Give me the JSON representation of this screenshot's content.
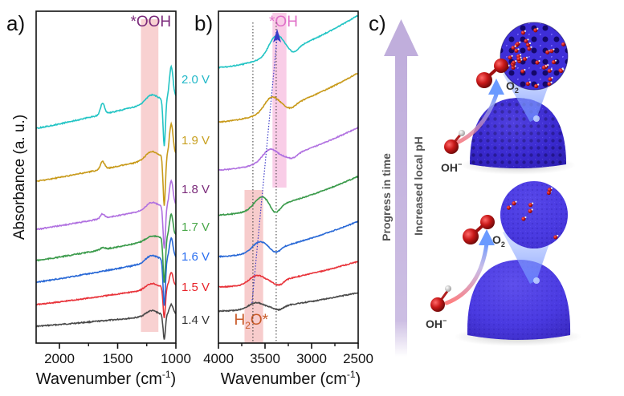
{
  "chart_data": [
    {
      "panel_label": "a)",
      "type": "line",
      "xlabel": "Wavenumber (cm",
      "xlabel_sup": "-1",
      "xlabel_tail": ")",
      "ylabel": "Absorbance (a. u.)",
      "xlim": [
        2200,
        1000
      ],
      "x_ticks": [
        2000,
        1500,
        1000
      ],
      "x_tick_labels": [
        "2000",
        "1500",
        "1000"
      ],
      "minor_ticks": [
        1750,
        1250
      ],
      "y_ticks": [],
      "grid": false,
      "highlight_band": {
        "label": "*OOH",
        "range": [
          1300,
          1150
        ],
        "color": "#f6c6c6",
        "label_color": "#7b2a7b"
      },
      "series": [
        {
          "name": "1.4 V",
          "color": "#4a4a4a",
          "offset": 0,
          "baseline_rise": 0.55,
          "hump": 0.25,
          "dip": 1.1,
          "peak_right": 0.45,
          "bump1630": 0.0
        },
        {
          "name": "1.5 V",
          "color": "#e8333a",
          "offset": 1,
          "baseline_rise": 0.85,
          "hump": 0.25,
          "dip": 1.4,
          "peak_right": 0.6,
          "bump1630": 0.0
        },
        {
          "name": "1.6 V",
          "color": "#2868d6",
          "offset": 2,
          "baseline_rise": 1.1,
          "hump": 0.3,
          "dip": 2.1,
          "peak_right": 0.9,
          "bump1630": 0.0
        },
        {
          "name": "1.7 V",
          "color": "#3a9a4a",
          "offset": 3,
          "baseline_rise": 1.1,
          "hump": 0.2,
          "dip": 2.0,
          "peak_right": 1.0,
          "bump1630": 0.1
        },
        {
          "name": "1.8 V",
          "color": "#b070e0",
          "offset": 4,
          "baseline_rise": 1.1,
          "hump": 0.3,
          "dip": 1.9,
          "peak_right": 1.1,
          "bump1630": 0.2
        },
        {
          "name": "1.9 V",
          "color": "#c89a1a",
          "offset": 5,
          "baseline_rise": 1.2,
          "hump": 0.35,
          "dip": 2.2,
          "peak_right": 1.4,
          "bump1630": 0.35
        },
        {
          "name": "2.0 V",
          "color": "#22c4c4",
          "offset": 6,
          "baseline_rise": 1.4,
          "hump": 0.35,
          "dip": 2.1,
          "peak_right": 1.4,
          "bump1630": 0.5
        }
      ],
      "label_colors": {
        "1.4 V": "#333333",
        "1.5 V": "#e8232a",
        "1.6 V": "#2a6ef0",
        "1.7 V": "#4aa84a",
        "1.8 V": "#7a2a7a",
        "1.9 V": "#c8a020",
        "2.0 V": "#22b8c8"
      }
    },
    {
      "panel_label": "b)",
      "type": "line",
      "xlabel": "Wavenumber (cm",
      "xlabel_sup": "-1",
      "xlabel_tail": ")",
      "xlim": [
        4000,
        2500
      ],
      "x_ticks": [
        4000,
        3500,
        3000,
        2500
      ],
      "x_tick_labels": [
        "4000",
        "3500",
        "3000",
        "2500"
      ],
      "minor_ticks": [
        3750,
        3250,
        2750
      ],
      "grid": false,
      "dotted_lines": [
        3630,
        3380
      ],
      "highlight_bands": [
        {
          "label": "*OH",
          "range": [
            3420,
            3270
          ],
          "color": "#f8c8e4",
          "label_color": "#e070c8"
        },
        {
          "label": "H2O*",
          "label_main": "H",
          "label_sub": "2",
          "label_tail": "O*",
          "range": [
            3720,
            3520
          ],
          "color": "#f6c6c6",
          "label_color": "#c85a28"
        }
      ],
      "arrow": {
        "from": [
          3640,
          "1.4 V"
        ],
        "to": [
          3370,
          "2.0 V"
        ],
        "color": "#3a3ac8",
        "style": "dotted"
      },
      "series": [
        {
          "name": "1.4 V",
          "color": "#4a4a4a",
          "peak_x": 3600,
          "peak_h": 0.25,
          "valley_x": 3350,
          "valley_h": 0.15,
          "rise": 0.9
        },
        {
          "name": "1.5 V",
          "color": "#e8333a",
          "peak_x": 3590,
          "peak_h": 0.35,
          "valley_x": 3350,
          "valley_h": 0.2,
          "rise": 1.3
        },
        {
          "name": "1.6 V",
          "color": "#2868d6",
          "peak_x": 3560,
          "peak_h": 0.4,
          "valley_x": 3380,
          "valley_h": 0.2,
          "rise": 1.9
        },
        {
          "name": "1.7 V",
          "color": "#3a9a4a",
          "peak_x": 3540,
          "peak_h": 0.5,
          "valley_x": 3390,
          "valley_h": 0.35,
          "rise": 2.2
        },
        {
          "name": "1.8 V",
          "color": "#b070e0",
          "peak_x": 3450,
          "peak_h": 0.5,
          "valley_x": 3200,
          "valley_h": 0.15,
          "rise": 1.8
        },
        {
          "name": "1.9 V",
          "color": "#c89a1a",
          "peak_x": 3430,
          "peak_h": 0.6,
          "valley_x": 3220,
          "valley_h": 0.15,
          "rise": 1.9
        },
        {
          "name": "2.0 V",
          "color": "#22c4c4",
          "peak_x": 3380,
          "peak_h": 0.8,
          "valley_x": 3190,
          "valley_h": 0.2,
          "rise": 2.3
        }
      ]
    }
  ],
  "panel_c": {
    "label": "c)",
    "arrow_text_1": "Progress in time",
    "arrow_text_2": "Increased local pH",
    "arrow_color": "#c0aedc",
    "top_scene": {
      "o2_label": "O",
      "o2_sub": "2",
      "oh_label": "OH",
      "oh_sup": "−",
      "catalyst": "porous-dome"
    },
    "bottom_scene": {
      "o2_label": "O",
      "o2_sub": "2",
      "oh_label": "OH",
      "oh_sup": "−",
      "catalyst": "smooth-dome"
    },
    "colors": {
      "catalyst": "#4a3ad8",
      "catalyst_dark": "#2a1a9a",
      "oxygen": "#c81818",
      "hydrogen": "#d8d8d8",
      "flux": "#8aa8ff",
      "reactant": "#ff6a6a"
    }
  }
}
